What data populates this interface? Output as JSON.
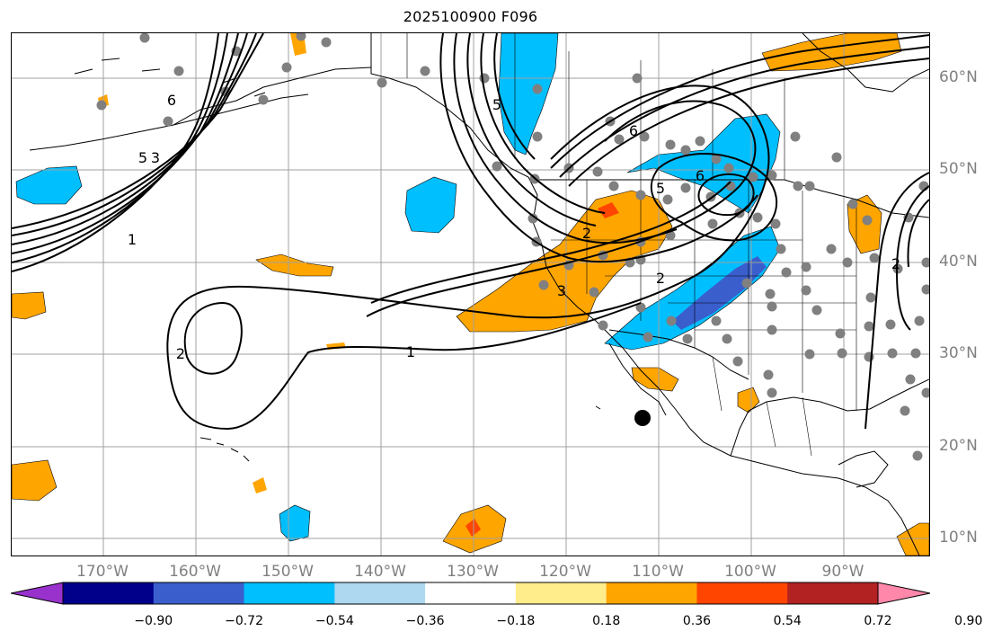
{
  "title": "2025100900 F096",
  "axes": {
    "lon_labels": [
      "170°W",
      "160°W",
      "150°W",
      "140°W",
      "130°W",
      "120°W",
      "110°W",
      "100°W",
      "90°W"
    ],
    "lat_labels": [
      "60°N",
      "50°N",
      "40°N",
      "30°N",
      "20°N",
      "10°N"
    ],
    "label_color": "#808080",
    "grid": true
  },
  "contour_labels": [
    "5",
    "3",
    "1",
    "6",
    "2",
    "5",
    "6",
    "5",
    "2",
    "3",
    "2",
    "1",
    "6",
    "2"
  ],
  "colorbar": {
    "ticks": [
      "−0.90",
      "−0.72",
      "−0.54",
      "−0.36",
      "−0.18",
      "0.18",
      "0.36",
      "0.54",
      "0.72",
      "0.90"
    ],
    "colors": [
      "#9932cc",
      "#00008b",
      "#3a5fcd",
      "#00bfff",
      "#add8f0",
      "#ffffff",
      "#ffec8b",
      "#ffa500",
      "#ff4500",
      "#b22222",
      "#ff88aa"
    ]
  }
}
